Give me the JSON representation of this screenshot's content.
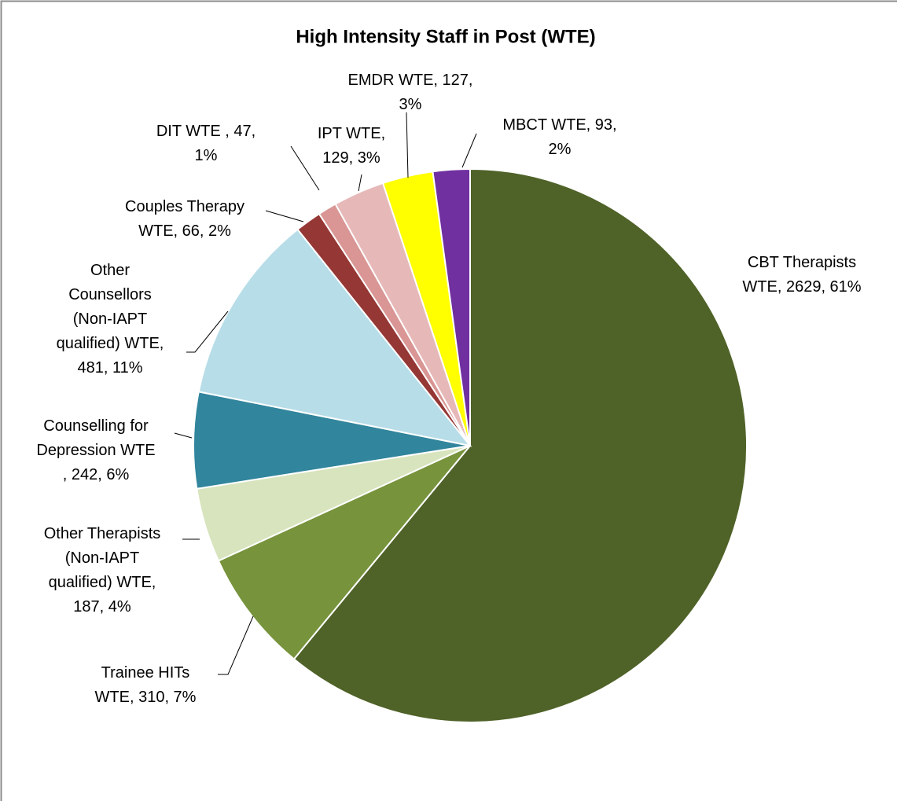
{
  "chart_data": {
    "type": "pie",
    "title": "High Intensity Staff in Post (WTE)",
    "categories": [
      "CBT Therapists WTE",
      "Trainee HITs WTE",
      "Other Therapists (Non-IAPT qualified) WTE",
      "Counselling for Depression WTE",
      "Other Counsellors (Non-IAPT qualified) WTE",
      "Couples Therapy WTE",
      "DIT WTE",
      "IPT WTE",
      "EMDR WTE",
      "MBCT WTE"
    ],
    "values": [
      2629,
      310,
      187,
      242,
      481,
      66,
      47,
      129,
      127,
      93
    ],
    "value_labels": [
      "CBT Therapists WTE, 2629, 61%",
      "Trainee HITs WTE, 310, 7%",
      "Other Therapists (Non-IAPT qualified) WTE, 187, 4%",
      "Counselling for Depression WTE , 242, 6%",
      "Other Counsellors (Non-IAPT qualified) WTE, 481, 11%",
      "Couples Therapy WTE, 66, 2%",
      "DIT WTE , 47, 1%",
      "IPT WTE, 129, 3%",
      "EMDR WTE, 127, 3%",
      "MBCT WTE, 93, 2%"
    ],
    "colors": [
      "#4f6228",
      "#77933c",
      "#d7e4bd",
      "#31859c",
      "#b7dde8",
      "#953735",
      "#d99694",
      "#e6b9b8",
      "#ffff00",
      "#7030a0"
    ]
  }
}
